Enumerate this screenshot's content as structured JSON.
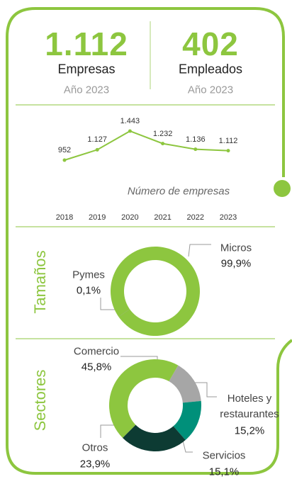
{
  "kpis": [
    {
      "number": "1.112",
      "label": "Empresas",
      "period": "Año 2023"
    },
    {
      "number": "402",
      "label": "Empleados",
      "period": "Año 2023"
    }
  ],
  "chart_data": [
    {
      "type": "line",
      "annotation": "Número de empresas",
      "categories": [
        "2018",
        "2019",
        "2020",
        "2021",
        "2022",
        "2023"
      ],
      "values": [
        952,
        1127,
        1443,
        1232,
        1136,
        1112
      ],
      "value_labels": [
        "952",
        "1.127",
        "1.443",
        "1.232",
        "1.136",
        "1.112"
      ],
      "color": "#8dc63f"
    },
    {
      "type": "donut",
      "title": "Tamaños",
      "categories": [
        "Micros",
        "Pymes"
      ],
      "values": [
        99.9,
        0.1
      ],
      "value_labels": [
        "99,9%",
        "0,1%"
      ],
      "colors": [
        "#8dc63f",
        "#6a9a2e"
      ]
    },
    {
      "type": "donut",
      "title": "Sectores",
      "categories": [
        "Comercio",
        "Hoteles y restaurantes",
        "Servicios",
        "Otros"
      ],
      "values": [
        45.8,
        15.2,
        15.1,
        23.9
      ],
      "value_labels": [
        "45,8%",
        "15,2%",
        "15,1%",
        "23,9%"
      ],
      "colors": [
        "#8dc63f",
        "#a6a6a6",
        "#00907a",
        "#0d3b33"
      ]
    }
  ]
}
